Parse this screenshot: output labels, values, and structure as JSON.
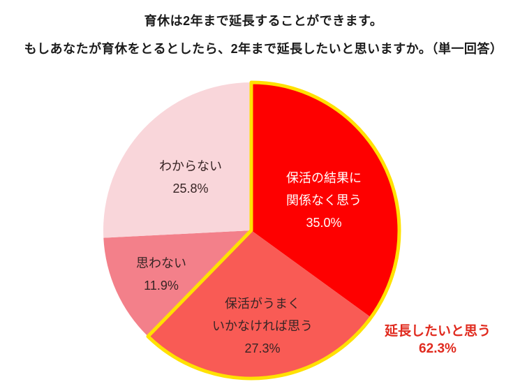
{
  "page": {
    "background_color": "#ffffff"
  },
  "header": {
    "title_line1": "育休は2年まで延長することができます。",
    "title_line2": "もしあなたが育休をとるとしたら、2年まで延長したいと思いますか。（単一回答）"
  },
  "chart_data": {
    "type": "pie",
    "title": "育休は2年まで延長することができます。もしあなたが育休をとるとしたら、2年まで延長したいと思いますか。（単一回答）",
    "start_angle_deg": 0,
    "direction": "clockwise",
    "unit": "%",
    "segments": [
      {
        "label": "保活の結果に関係なく思う",
        "label_lines": [
          "保活の結果に",
          "関係なく思う"
        ],
        "pct_label": "35.0%",
        "value": 35.0,
        "color": "#fe0000",
        "text_color": "#ffffff"
      },
      {
        "label": "保活がうまくいかなければ思う",
        "label_lines": [
          "保活がうまく",
          "いかなければ思う"
        ],
        "pct_label": "27.3%",
        "value": 27.3,
        "color": "#f95b55",
        "text_color": "#382525"
      },
      {
        "label": "思わない",
        "label_lines": [
          "思わない"
        ],
        "pct_label": "11.9%",
        "value": 11.9,
        "color": "#f3808a",
        "text_color": "#382525"
      },
      {
        "label": "わからない",
        "label_lines": [
          "わからない"
        ],
        "pct_label": "25.8%",
        "value": 25.8,
        "color": "#f9d6da",
        "text_color": "#382525"
      }
    ],
    "highlight": {
      "segment_indices": [
        0,
        1
      ],
      "total_pct": 62.3,
      "outline_color": "#ffe100",
      "callout_line1": "延長したいと思う",
      "callout_line2": "62.3%",
      "callout_color": "#e02a1e"
    },
    "legend_position": "none",
    "grid": false
  }
}
